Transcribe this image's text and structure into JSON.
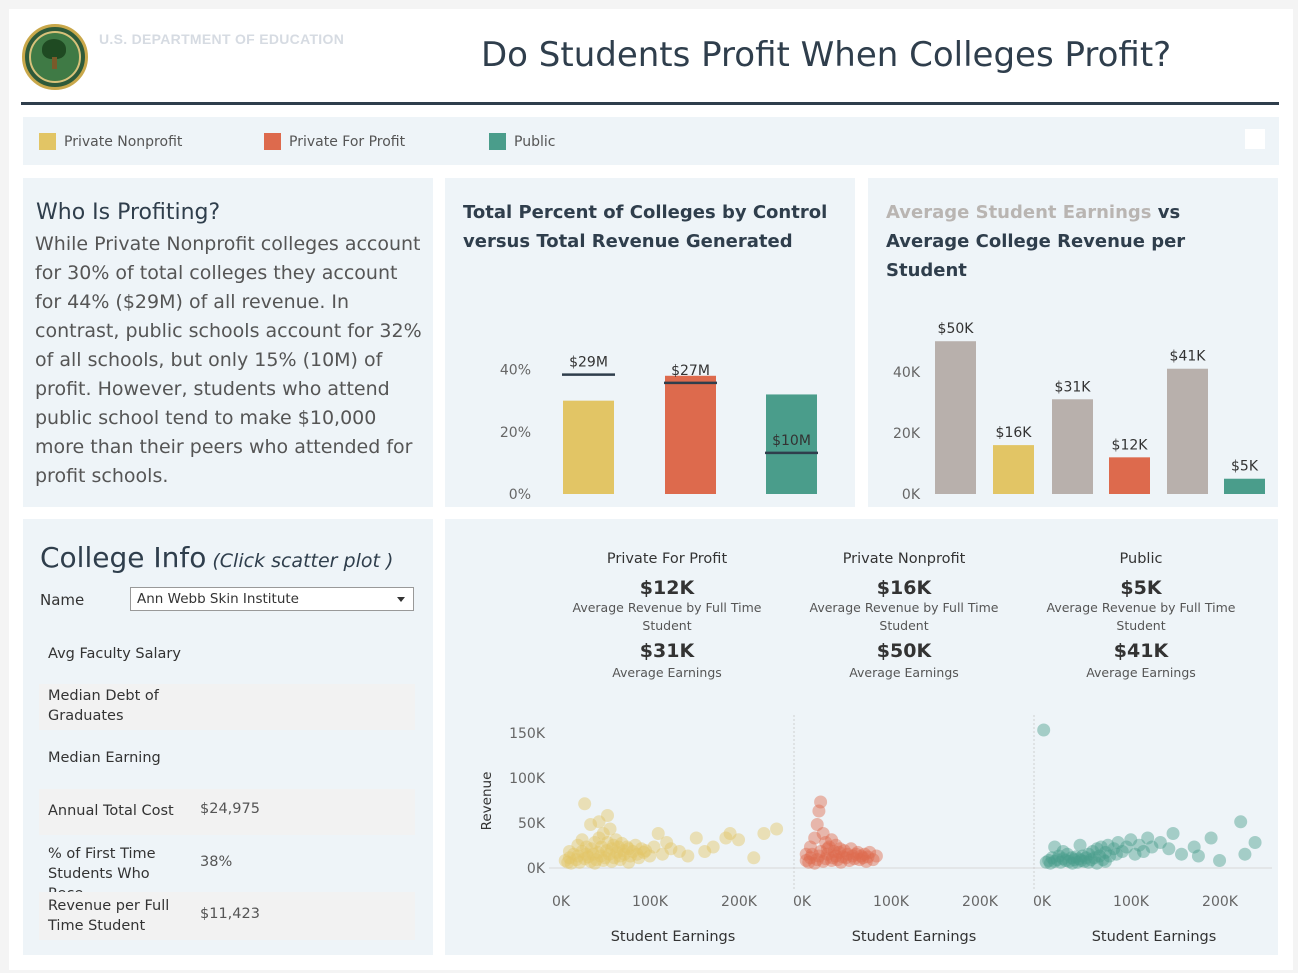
{
  "header": {
    "agency": "U.S. DEPARTMENT OF EDUCATION",
    "title": "Do Students Profit When Colleges Profit?"
  },
  "colors": {
    "private_nonprofit": "#e2c565",
    "private_for_profit": "#dd6a4d",
    "public": "#4a9d8b",
    "earnings_gray": "#b8b0ac",
    "navy": "#2f3e4c"
  },
  "legend": {
    "items": [
      {
        "label": "Private Nonprofit",
        "color": "#e2c565"
      },
      {
        "label": "Private For Profit",
        "color": "#dd6a4d"
      },
      {
        "label": "Public",
        "color": "#4a9d8b"
      }
    ]
  },
  "who": {
    "heading": "Who Is Profiting?",
    "body": "While Private Nonprofit colleges account for 30% of total colleges they account for 44% ($29M) of all revenue. In contrast, public schools account for 32% of all schools, but only 15% (10M) of profit. However, students who attend public school tend to make $10,000 more than their peers who attended for profit schools."
  },
  "chart1": {
    "title": "Total Percent of Colleges by Control versus Total Revenue Generated"
  },
  "chart2": {
    "title_part1": "Average Student Earnings",
    "title_part2": " vs Average College Revenue per Student"
  },
  "college_info": {
    "heading": "College Info",
    "hint": "(Click scatter plot )",
    "name_label": "Name",
    "selected_name": "Ann Webb Skin Institute",
    "rows": [
      {
        "label": "Avg Faculty Salary",
        "value": ""
      },
      {
        "label": "Median Debt of Graduates",
        "value": ""
      },
      {
        "label": "Median Earning",
        "value": ""
      },
      {
        "label": "Annual Total Cost",
        "value": "$24,975"
      },
      {
        "label": "% of First Time Students Who Rece..",
        "value": "38%"
      },
      {
        "label": "Revenue per Full Time Student",
        "value": "$11,423"
      }
    ]
  },
  "stats": [
    {
      "name": "Private For Profit",
      "revenue": "$12K",
      "revenue_label": "Average Revenue by Full Time Student",
      "earnings": "$31K",
      "earnings_label": "Average Earnings"
    },
    {
      "name": "Private Nonprofit",
      "revenue": "$16K",
      "revenue_label": "Average Revenue by Full Time Student",
      "earnings": "$50K",
      "earnings_label": "Average Earnings"
    },
    {
      "name": "Public",
      "revenue": "$5K",
      "revenue_label": "Average Revenue by Full Time Student",
      "earnings": "$41K",
      "earnings_label": "Average Earnings"
    }
  ],
  "chart_data": [
    {
      "type": "bar",
      "title": "Total Percent of Colleges by Control versus Total Revenue Generated",
      "categories": [
        "Private Nonprofit",
        "Private For Profit",
        "Public"
      ],
      "series": [
        {
          "name": "Percent of Colleges",
          "values": [
            30,
            38,
            32
          ]
        },
        {
          "name": "Total Revenue",
          "values": [
            29,
            27,
            10
          ],
          "labels": [
            "$29M",
            "$27M",
            "$10M"
          ]
        }
      ],
      "y_ticks": [
        "0%",
        "20%",
        "40%"
      ],
      "ylim": [
        0,
        45
      ],
      "revenue_scale_max": 34,
      "colors": [
        "#e2c565",
        "#dd6a4d",
        "#4a9d8b"
      ]
    },
    {
      "type": "bar",
      "title": "Average Student Earnings vs Average College Revenue per Student",
      "categories": [
        "Private Nonprofit earnings",
        "Private Nonprofit revenue",
        "Private For Profit earnings",
        "Private For Profit revenue",
        "Public earnings",
        "Public revenue"
      ],
      "values": [
        50,
        16,
        31,
        12,
        41,
        5
      ],
      "labels": [
        "$50K",
        "$16K",
        "$31K",
        "$12K",
        "$41K",
        "$5K"
      ],
      "y_ticks": [
        "0K",
        "20K",
        "40K"
      ],
      "ylim": [
        0,
        54
      ],
      "colors": [
        "#b8b0ac",
        "#e2c565",
        "#b8b0ac",
        "#dd6a4d",
        "#b8b0ac",
        "#4a9d8b"
      ]
    },
    {
      "type": "scatter",
      "ylabel": "Revenue",
      "y_ticks": [
        "0K",
        "50K",
        "100K",
        "150K"
      ],
      "ylim": [
        0,
        160
      ],
      "xlim": [
        0,
        265
      ],
      "panels": [
        {
          "name": "Private Nonprofit",
          "xlabel": "Student Earnings",
          "x_ticks": [
            "0K",
            "100K",
            "200K"
          ],
          "color": "#e2c565",
          "points": [
            [
              5,
              5
            ],
            [
              8,
              3
            ],
            [
              10,
              8
            ],
            [
              12,
              2
            ],
            [
              15,
              12
            ],
            [
              18,
              6
            ],
            [
              20,
              10
            ],
            [
              22,
              3
            ],
            [
              25,
              15
            ],
            [
              28,
              7
            ],
            [
              30,
              20
            ],
            [
              32,
              9
            ],
            [
              35,
              4
            ],
            [
              36,
              18
            ],
            [
              38,
              12
            ],
            [
              40,
              25
            ],
            [
              42,
              6
            ],
            [
              44,
              14
            ],
            [
              45,
              30
            ],
            [
              47,
              10
            ],
            [
              48,
              20
            ],
            [
              50,
              35
            ],
            [
              52,
              8
            ],
            [
              54,
              16
            ],
            [
              55,
              25
            ],
            [
              57,
              12
            ],
            [
              58,
              40
            ],
            [
              60,
              18
            ],
            [
              62,
              22
            ],
            [
              63,
              8
            ],
            [
              65,
              28
            ],
            [
              66,
              14
            ],
            [
              68,
              20
            ],
            [
              70,
              10
            ],
            [
              72,
              24
            ],
            [
              74,
              16
            ],
            [
              75,
              12
            ],
            [
              78,
              20
            ],
            [
              80,
              18
            ],
            [
              82,
              10
            ],
            [
              85,
              15
            ],
            [
              88,
              22
            ],
            [
              90,
              12
            ],
            [
              92,
              8
            ],
            [
              95,
              18
            ],
            [
              98,
              14
            ],
            [
              100,
              16
            ],
            [
              105,
              10
            ],
            [
              110,
              20
            ],
            [
              115,
              35
            ],
            [
              120,
              12
            ],
            [
              125,
              25
            ],
            [
              130,
              18
            ],
            [
              140,
              15
            ],
            [
              150,
              10
            ],
            [
              160,
              30
            ],
            [
              170,
              15
            ],
            [
              180,
              20
            ],
            [
              195,
              30
            ],
            [
              200,
              35
            ],
            [
              210,
              28
            ],
            [
              228,
              8
            ],
            [
              240,
              35
            ],
            [
              255,
              40
            ],
            [
              10,
              15
            ],
            [
              20,
              22
            ],
            [
              30,
              12
            ],
            [
              40,
              2
            ],
            [
              50,
              5
            ],
            [
              60,
              4
            ],
            [
              70,
              6
            ],
            [
              80,
              3
            ],
            [
              25,
              28
            ],
            [
              35,
              45
            ],
            [
              45,
              48
            ],
            [
              28,
              68
            ],
            [
              55,
              55
            ]
          ]
        },
        {
          "name": "Private For Profit",
          "xlabel": "Student Earnings",
          "x_ticks": [
            "0K",
            "100K",
            "200K"
          ],
          "color": "#dd6a4d",
          "points": [
            [
              5,
              5
            ],
            [
              8,
              3
            ],
            [
              10,
              8
            ],
            [
              12,
              12
            ],
            [
              15,
              2
            ],
            [
              18,
              6
            ],
            [
              20,
              10
            ],
            [
              22,
              15
            ],
            [
              25,
              4
            ],
            [
              28,
              7
            ],
            [
              30,
              12
            ],
            [
              32,
              20
            ],
            [
              35,
              5
            ],
            [
              36,
              8
            ],
            [
              38,
              15
            ],
            [
              40,
              10
            ],
            [
              42,
              6
            ],
            [
              44,
              14
            ],
            [
              46,
              3
            ],
            [
              48,
              9
            ],
            [
              50,
              16
            ],
            [
              52,
              8
            ],
            [
              54,
              12
            ],
            [
              56,
              5
            ],
            [
              58,
              18
            ],
            [
              60,
              10
            ],
            [
              62,
              7
            ],
            [
              64,
              12
            ],
            [
              66,
              14
            ],
            [
              68,
              6
            ],
            [
              70,
              10
            ],
            [
              72,
              8
            ],
            [
              74,
              12
            ],
            [
              76,
              4
            ],
            [
              78,
              9
            ],
            [
              80,
              14
            ],
            [
              84,
              6
            ],
            [
              88,
              10
            ],
            [
              20,
              60
            ],
            [
              22,
              70
            ],
            [
              18,
              45
            ],
            [
              25,
              35
            ],
            [
              15,
              30
            ],
            [
              28,
              25
            ],
            [
              10,
              20
            ],
            [
              5,
              12
            ],
            [
              30,
              18
            ],
            [
              35,
              28
            ],
            [
              40,
              22
            ],
            [
              45,
              18
            ]
          ]
        },
        {
          "name": "Public",
          "xlabel": "Student Earnings",
          "x_ticks": [
            "0K",
            "100K",
            "200K"
          ],
          "color": "#4a9d8b",
          "points": [
            [
              5,
              3
            ],
            [
              8,
              5
            ],
            [
              10,
              2
            ],
            [
              12,
              8
            ],
            [
              15,
              4
            ],
            [
              18,
              6
            ],
            [
              20,
              10
            ],
            [
              22,
              3
            ],
            [
              25,
              7
            ],
            [
              28,
              5
            ],
            [
              30,
              12
            ],
            [
              32,
              4
            ],
            [
              35,
              8
            ],
            [
              36,
              2
            ],
            [
              38,
              6
            ],
            [
              40,
              9
            ],
            [
              42,
              3
            ],
            [
              44,
              7
            ],
            [
              46,
              5
            ],
            [
              48,
              10
            ],
            [
              50,
              4
            ],
            [
              52,
              8
            ],
            [
              55,
              12
            ],
            [
              58,
              6
            ],
            [
              60,
              15
            ],
            [
              62,
              8
            ],
            [
              65,
              18
            ],
            [
              68,
              10
            ],
            [
              70,
              20
            ],
            [
              72,
              6
            ],
            [
              75,
              14
            ],
            [
              78,
              22
            ],
            [
              80,
              10
            ],
            [
              85,
              18
            ],
            [
              88,
              12
            ],
            [
              90,
              25
            ],
            [
              95,
              15
            ],
            [
              100,
              20
            ],
            [
              105,
              28
            ],
            [
              110,
              12
            ],
            [
              115,
              22
            ],
            [
              120,
              15
            ],
            [
              125,
              30
            ],
            [
              130,
              20
            ],
            [
              140,
              25
            ],
            [
              150,
              18
            ],
            [
              155,
              35
            ],
            [
              165,
              12
            ],
            [
              180,
              20
            ],
            [
              185,
              10
            ],
            [
              200,
              30
            ],
            [
              210,
              5
            ],
            [
              235,
              48
            ],
            [
              240,
              12
            ],
            [
              252,
              25
            ],
            [
              2,
              152
            ],
            [
              15,
              20
            ],
            [
              25,
              15
            ],
            [
              45,
              22
            ],
            [
              55,
              3
            ],
            [
              65,
              2
            ],
            [
              75,
              4
            ]
          ]
        }
      ]
    }
  ]
}
